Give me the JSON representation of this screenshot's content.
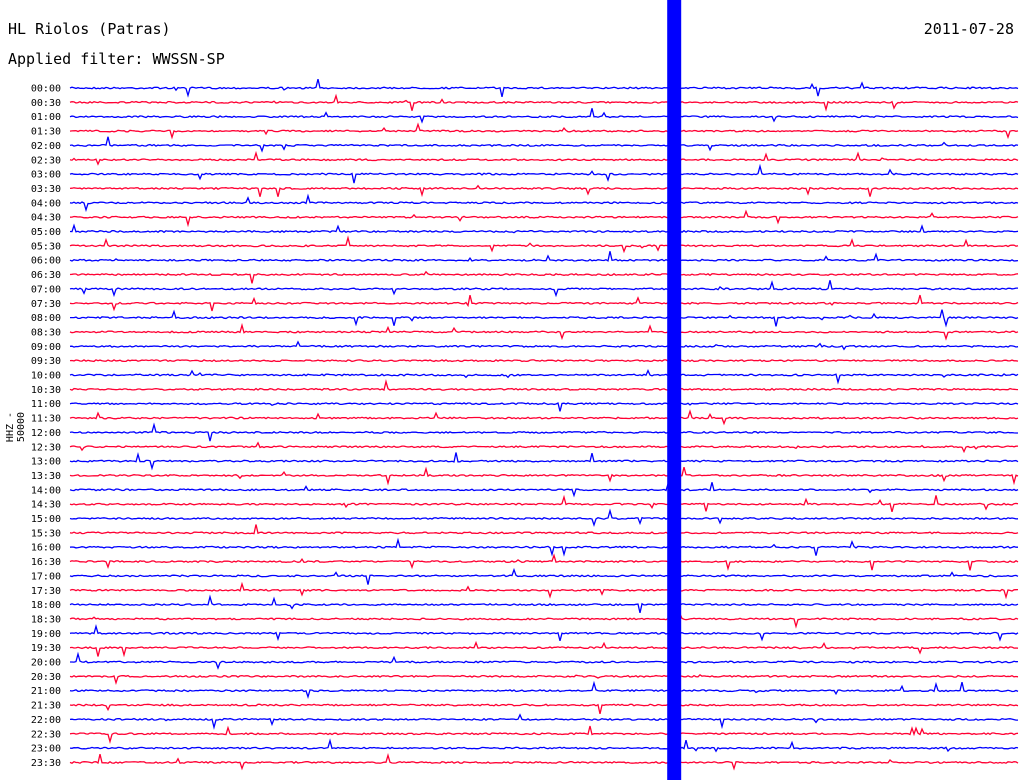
{
  "header": {
    "station": "HL Riolos (Patras)",
    "date": "2011-07-28",
    "filter": "Applied filter: WWSSN-SP"
  },
  "chart_data": {
    "type": "helicorder",
    "ylabel": "HHZ - 50000",
    "rows": [
      "00:00",
      "00:30",
      "01:00",
      "01:30",
      "02:00",
      "02:30",
      "03:00",
      "03:30",
      "04:00",
      "04:30",
      "05:00",
      "05:30",
      "06:00",
      "06:30",
      "07:00",
      "07:30",
      "08:00",
      "08:30",
      "09:00",
      "09:30",
      "10:00",
      "10:30",
      "11:00",
      "11:30",
      "12:00",
      "12:30",
      "13:00",
      "13:30",
      "14:00",
      "14:30",
      "15:00",
      "15:30",
      "16:00",
      "16:30",
      "17:00",
      "17:30",
      "18:00",
      "18:30",
      "19:00",
      "19:30",
      "20:00",
      "20:30",
      "21:00",
      "21:30",
      "22:00",
      "22:30",
      "23:00",
      "23:30"
    ],
    "row_colors": [
      "#0000ff",
      "#ff0033"
    ],
    "major_event": {
      "x_fraction": 0.64,
      "description_hidden": true
    }
  }
}
